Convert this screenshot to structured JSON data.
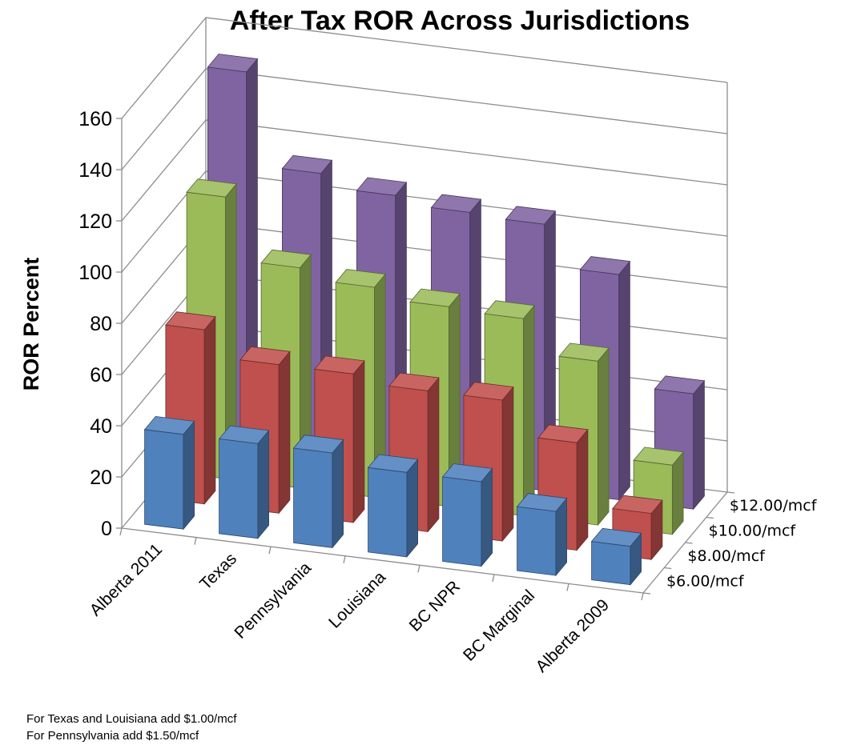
{
  "chart_data": {
    "type": "bar",
    "title": "After Tax ROR Across Jurisdictions",
    "ylabel": "ROR Percent",
    "xlabel": "",
    "ylim": [
      0,
      160
    ],
    "yticks": [
      "0",
      "20",
      "40",
      "60",
      "80",
      "100",
      "120",
      "140",
      "160"
    ],
    "categories": [
      "Alberta 2011",
      "Texas",
      "Pennsylvania",
      "Louisiana",
      "BC NPR",
      "BC Marginal",
      "Alberta 2009"
    ],
    "series": [
      {
        "name": "$6.00/mcf",
        "color": "#4F81BD",
        "values": [
          37,
          37,
          37,
          33,
          33,
          25,
          15
        ]
      },
      {
        "name": "$8.00/mcf",
        "color": "#C0504D",
        "values": [
          68,
          58,
          58,
          55,
          55,
          42,
          18
        ]
      },
      {
        "name": "$10.00/mcf",
        "color": "#9BBB59",
        "values": [
          110,
          86,
          82,
          78,
          77,
          64,
          27
        ]
      },
      {
        "name": "$12.00/mcf",
        "color": "#8064A2",
        "values": [
          149,
          113,
          108,
          105,
          104,
          88,
          45
        ]
      }
    ],
    "grid": true,
    "legend": "depth-axis"
  },
  "notes": [
    "For Texas and Louisiana add $1.00/mcf",
    "For Pennsylvania add $1.50/mcf"
  ]
}
